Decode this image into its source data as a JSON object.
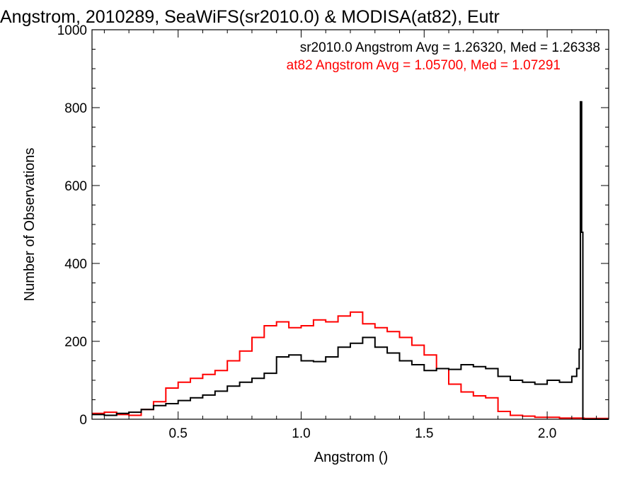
{
  "chart_data": {
    "type": "line",
    "title": "Angstrom, 2010289, SeaWiFS(sr2010.0) & MODISA(at82), Eutr",
    "xlabel": "Angstrom ()",
    "ylabel": "Number of Observations",
    "xlim": [
      0.15,
      2.25
    ],
    "ylim": [
      0,
      1000
    ],
    "x_ticks": [
      "0.5",
      "1.0",
      "1.5",
      "2.0"
    ],
    "y_ticks": [
      "0",
      "200",
      "400",
      "600",
      "800",
      "1000"
    ],
    "x_tick_values": [
      0.5,
      1.0,
      1.5,
      2.0
    ],
    "y_tick_values": [
      0,
      200,
      400,
      600,
      800,
      1000
    ],
    "step": "histogram",
    "grid": false,
    "legend_position": "top-right",
    "series": [
      {
        "name": "sr2010.0",
        "label": "sr2010.0 Angstrom Avg = 1.26320, Med = 1.26338",
        "color": "#000000",
        "x": [
          0.15,
          0.2,
          0.25,
          0.3,
          0.35,
          0.4,
          0.45,
          0.5,
          0.55,
          0.6,
          0.65,
          0.7,
          0.75,
          0.8,
          0.85,
          0.9,
          0.95,
          1.0,
          1.05,
          1.1,
          1.15,
          1.2,
          1.25,
          1.3,
          1.35,
          1.4,
          1.45,
          1.5,
          1.55,
          1.6,
          1.65,
          1.7,
          1.75,
          1.8,
          1.85,
          1.9,
          1.95,
          2.0,
          2.05,
          2.1,
          2.12,
          2.13,
          2.135,
          2.14,
          2.145,
          2.15,
          2.2,
          2.25
        ],
        "values": [
          12,
          10,
          15,
          18,
          25,
          35,
          40,
          48,
          55,
          62,
          72,
          85,
          95,
          105,
          118,
          160,
          165,
          150,
          148,
          160,
          185,
          195,
          210,
          185,
          170,
          150,
          140,
          125,
          130,
          128,
          140,
          135,
          130,
          110,
          100,
          95,
          90,
          100,
          95,
          110,
          130,
          180,
          815,
          480,
          0,
          0,
          0,
          0
        ]
      },
      {
        "name": "at82",
        "label": "at82 Angstrom Avg = 1.05700, Med = 1.07291",
        "color": "#ff0000",
        "x": [
          0.15,
          0.2,
          0.25,
          0.3,
          0.35,
          0.4,
          0.45,
          0.5,
          0.55,
          0.6,
          0.65,
          0.7,
          0.75,
          0.8,
          0.85,
          0.9,
          0.95,
          1.0,
          1.05,
          1.1,
          1.15,
          1.2,
          1.25,
          1.3,
          1.35,
          1.4,
          1.45,
          1.5,
          1.55,
          1.6,
          1.65,
          1.7,
          1.75,
          1.8,
          1.85,
          1.9,
          1.95,
          2.0,
          2.05,
          2.1,
          2.15,
          2.2,
          2.25
        ],
        "values": [
          15,
          18,
          12,
          10,
          25,
          45,
          80,
          95,
          105,
          115,
          125,
          150,
          175,
          210,
          240,
          250,
          235,
          240,
          255,
          250,
          265,
          275,
          245,
          235,
          225,
          210,
          190,
          165,
          130,
          90,
          70,
          60,
          55,
          20,
          10,
          8,
          5,
          5,
          3,
          3,
          2,
          2,
          2
        ]
      }
    ]
  }
}
